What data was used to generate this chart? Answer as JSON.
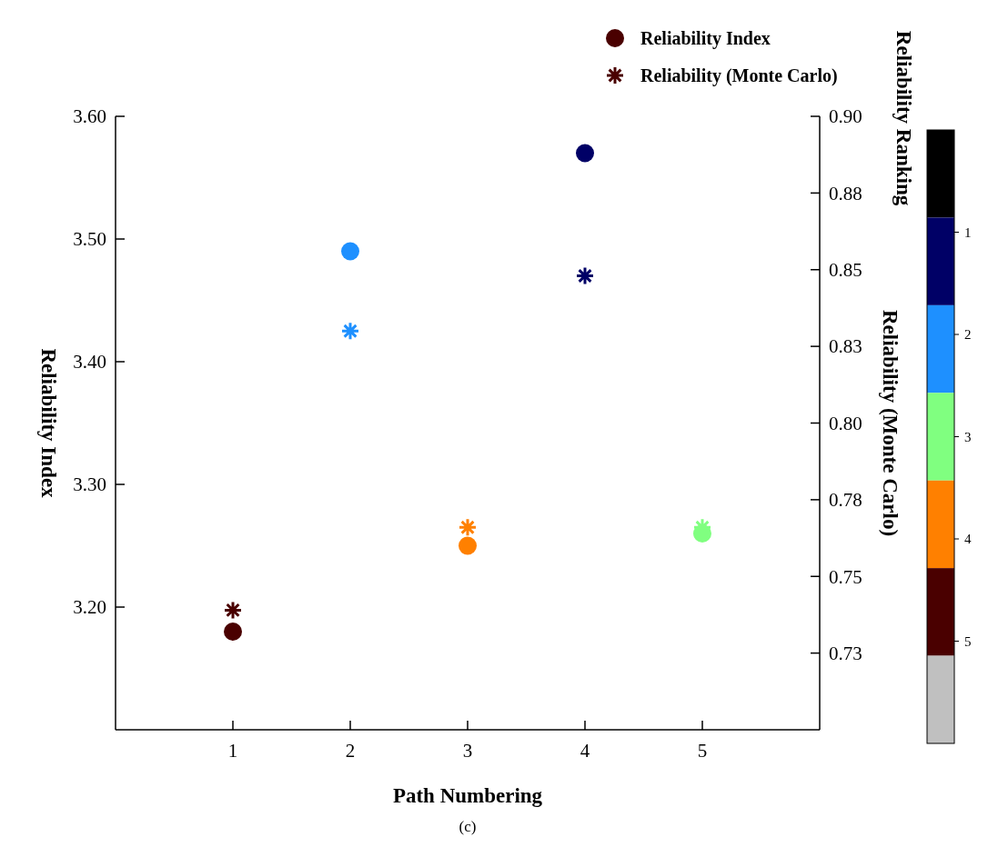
{
  "chart_data": {
    "type": "scatter",
    "xlabel": "Path Numbering",
    "ylabel": "Reliability Index",
    "y2label": "Reliability (Monte Carlo)",
    "clabel": "Reliability Ranking",
    "x": [
      1,
      2,
      3,
      4,
      5
    ],
    "series": [
      {
        "name": "Reliability Index",
        "colors": [
          "#4a0000",
          "#1e90ff",
          "#ff8000",
          "#000066",
          "#80ff80"
        ],
        "marker": "circle",
        "values": [
          3.18,
          3.49,
          3.25,
          3.57,
          3.26
        ]
      },
      {
        "name": "Reliability (Monte Carlo)",
        "colors": [
          "#4a0000",
          "#1e90ff",
          "#ff8000",
          "#000066",
          "#80ff80"
        ],
        "marker": "cross",
        "axis": "y2",
        "values": [
          0.739,
          0.83,
          0.766,
          0.848,
          0.766
        ]
      }
    ],
    "xlim": [
      0,
      6
    ],
    "xticks": [
      1,
      2,
      3,
      4,
      5
    ],
    "ylim": [
      3.1,
      3.6
    ],
    "yticks": [
      {
        "value": 3.2,
        "label": "3.20"
      },
      {
        "value": 3.3,
        "label": "3.30"
      },
      {
        "value": 3.4,
        "label": "3.40"
      },
      {
        "value": 3.5,
        "label": "3.50"
      },
      {
        "value": 3.6,
        "label": "3.60"
      }
    ],
    "y2lim": [
      0.7,
      0.9
    ],
    "y2ticks": [
      {
        "value": 0.725,
        "label": "0.73"
      },
      {
        "value": 0.75,
        "label": "0.75"
      },
      {
        "value": 0.775,
        "label": "0.78"
      },
      {
        "value": 0.8,
        "label": "0.80"
      },
      {
        "value": 0.825,
        "label": "0.83"
      },
      {
        "value": 0.85,
        "label": "0.85"
      },
      {
        "value": 0.875,
        "label": "0.88"
      },
      {
        "value": 0.9,
        "label": "0.90"
      }
    ],
    "clim": [
      0,
      6
    ],
    "cticks": [
      1,
      2,
      3,
      4,
      5
    ],
    "grid": false,
    "legend": "top right",
    "annotations": [
      "(c)"
    ]
  }
}
